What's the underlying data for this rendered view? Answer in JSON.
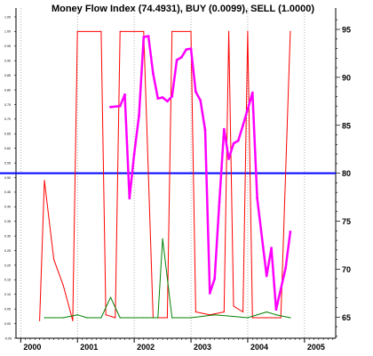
{
  "chart_data": {
    "type": "line",
    "title": "Money Flow Index (74.4931), BUY (0.0099), SELL (1.0000)",
    "x_tick_labels": [
      "2000",
      "2001",
      "2002",
      "2003",
      "2004",
      "2005"
    ],
    "left_axis": {
      "ylim": [
        -0.05,
        1.05
      ],
      "tick_labels": [
        "1.05",
        "1.00",
        "0.95",
        "0.90",
        "0.85",
        "0.80",
        "0.75",
        "0.70",
        "0.65",
        "0.60",
        "0.55",
        "0.50",
        "0.45",
        "0.40",
        "0.35",
        "0.30",
        "0.25",
        "0.20",
        "0.15",
        "0.10",
        "0.05",
        "0.00",
        "-0.05"
      ]
    },
    "right_axis": {
      "ylim": [
        62.8,
        96.3
      ],
      "tick_labels": [
        "95",
        "90",
        "85",
        "80",
        "75",
        "70",
        "65"
      ]
    },
    "grid": "vertical dotted lines at year boundaries",
    "reference_line": {
      "axis": "right",
      "value": 80,
      "color": "#0000ff"
    },
    "series": [
      {
        "axis": "left",
        "color": "#ff0000",
        "points": [
          [
            "2000-05",
            0.01
          ],
          [
            "2000-06",
            0.49
          ],
          [
            "2000-08",
            0.22
          ],
          [
            "2000-10",
            0.13
          ],
          [
            "2000-12",
            0.01
          ],
          [
            "2001-01",
            1.0
          ],
          [
            "2001-06",
            1.0
          ],
          [
            "2001-07",
            0.03
          ],
          [
            "2001-09",
            0.02
          ],
          [
            "2001-10",
            1.0
          ],
          [
            "2002-03",
            1.0
          ],
          [
            "2002-05",
            0.02
          ],
          [
            "2002-08",
            0.02
          ],
          [
            "2002-09",
            1.0
          ],
          [
            "2003-01",
            1.0
          ],
          [
            "2003-02",
            0.04
          ],
          [
            "2003-05",
            0.03
          ],
          [
            "2003-08",
            0.04
          ],
          [
            "2003-09",
            1.0
          ],
          [
            "2003-10",
            0.06
          ],
          [
            "2003-12",
            0.04
          ],
          [
            "2004-01",
            1.0
          ],
          [
            "2004-02",
            0.02
          ],
          [
            "2004-05",
            0.02
          ],
          [
            "2004-08",
            0.02
          ],
          [
            "2004-10",
            1.0
          ]
        ]
      },
      {
        "axis": "left",
        "color": "#008000",
        "points": [
          [
            "2000-06",
            0.02
          ],
          [
            "2000-10",
            0.02
          ],
          [
            "2001-01",
            0.03
          ],
          [
            "2001-03",
            0.02
          ],
          [
            "2001-06",
            0.02
          ],
          [
            "2001-08",
            0.09
          ],
          [
            "2001-10",
            0.02
          ],
          [
            "2002-03",
            0.02
          ],
          [
            "2002-06",
            0.02
          ],
          [
            "2002-07",
            0.29
          ],
          [
            "2002-09",
            0.02
          ],
          [
            "2003-01",
            0.02
          ],
          [
            "2003-06",
            0.03
          ],
          [
            "2004-01",
            0.02
          ],
          [
            "2004-05",
            0.04
          ],
          [
            "2004-07",
            0.03
          ],
          [
            "2004-10",
            0.02
          ]
        ]
      },
      {
        "axis": "right",
        "color": "#ff00ff",
        "points": [
          [
            "2001-08",
            86.9
          ],
          [
            "2001-10",
            87.0
          ],
          [
            "2001-11",
            88.2
          ],
          [
            "2001-12",
            77.4
          ],
          [
            "2002-01",
            82.0
          ],
          [
            "2002-02",
            86.0
          ],
          [
            "2002-03",
            94.2
          ],
          [
            "2002-04",
            94.3
          ],
          [
            "2002-05",
            90.4
          ],
          [
            "2002-06",
            87.8
          ],
          [
            "2002-07",
            87.9
          ],
          [
            "2002-08",
            87.5
          ],
          [
            "2002-09",
            88.0
          ],
          [
            "2002-10",
            91.8
          ],
          [
            "2002-11",
            92.1
          ],
          [
            "2002-12",
            92.9
          ],
          [
            "2003-01",
            93.0
          ],
          [
            "2003-02",
            88.5
          ],
          [
            "2003-03",
            87.6
          ],
          [
            "2003-04",
            84.5
          ],
          [
            "2003-05",
            67.5
          ],
          [
            "2003-06",
            69.0
          ],
          [
            "2003-07",
            77.0
          ],
          [
            "2003-08",
            84.6
          ],
          [
            "2003-09",
            81.5
          ],
          [
            "2003-10",
            83.1
          ],
          [
            "2003-11",
            83.4
          ],
          [
            "2003-12",
            85.0
          ],
          [
            "2004-02",
            88.4
          ],
          [
            "2004-03",
            77.4
          ],
          [
            "2004-05",
            69.3
          ],
          [
            "2004-06",
            72.2
          ],
          [
            "2004-07",
            65.8
          ],
          [
            "2004-09",
            70.1
          ],
          [
            "2004-10",
            73.9
          ]
        ]
      }
    ]
  }
}
